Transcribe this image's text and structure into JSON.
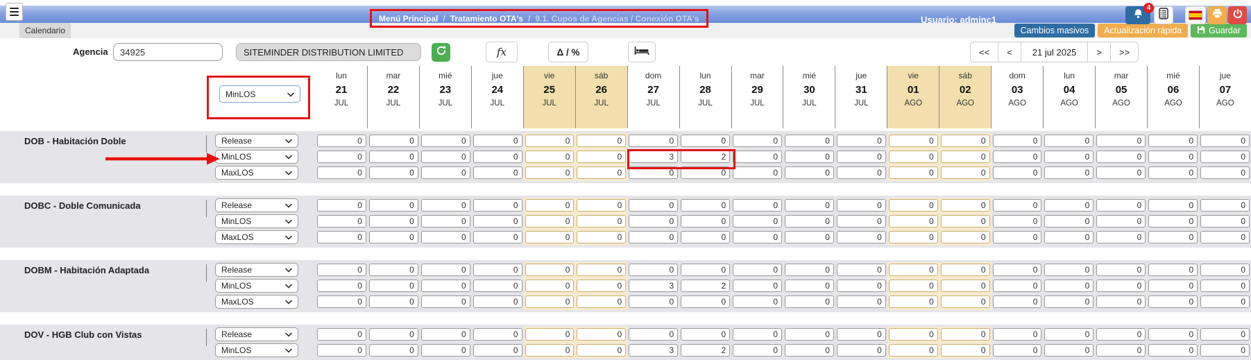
{
  "topbar": {
    "separator": "/",
    "breadcrumb": [
      {
        "label": "Menú Principal"
      },
      {
        "label": "Tratamiento OTA's"
      },
      {
        "label": "9.1. Cupos de Agencias / Conexión OTA's"
      }
    ],
    "user": "Usuario: adminc1",
    "notifications_badge": "4",
    "icons": [
      "hamburger-menu-icon",
      "bell-icon",
      "log-list-icon",
      "spain-flag-icon",
      "printer-icon",
      "power-icon"
    ]
  },
  "tabs": {
    "calendario": "Calendario"
  },
  "action_buttons": {
    "cambios_masivos": "Cambios masivos",
    "actualizacion_rapida": "Actualización rápida",
    "guardar": "Guardar"
  },
  "toolbar": {
    "agencia_label": "Agencia",
    "agencia_code": "34925",
    "agencia_name": "SITEMINDER DISTRIBUTION LIMITED",
    "fx_button": "fx",
    "delta_button": "Δ / %",
    "pagination": {
      "first": "<<",
      "prev": "<",
      "current_date": "21 jul 2025",
      "next": ">",
      "last": ">>"
    }
  },
  "filter": {
    "attribute_selected": "MinLOS"
  },
  "calendar_header": {
    "days": [
      {
        "dow": "lun",
        "date": "21",
        "month": "JUL",
        "weekend": false
      },
      {
        "dow": "mar",
        "date": "22",
        "month": "JUL",
        "weekend": false
      },
      {
        "dow": "mié",
        "date": "23",
        "month": "JUL",
        "weekend": false
      },
      {
        "dow": "jue",
        "date": "24",
        "month": "JUL",
        "weekend": false
      },
      {
        "dow": "vie",
        "date": "25",
        "month": "JUL",
        "weekend": true
      },
      {
        "dow": "sáb",
        "date": "26",
        "month": "JUL",
        "weekend": true
      },
      {
        "dow": "dom",
        "date": "27",
        "month": "JUL",
        "weekend": false
      },
      {
        "dow": "lun",
        "date": "28",
        "month": "JUL",
        "weekend": false
      },
      {
        "dow": "mar",
        "date": "29",
        "month": "JUL",
        "weekend": false
      },
      {
        "dow": "mié",
        "date": "30",
        "month": "JUL",
        "weekend": false
      },
      {
        "dow": "jue",
        "date": "31",
        "month": "JUL",
        "weekend": false
      },
      {
        "dow": "vie",
        "date": "01",
        "month": "AGO",
        "weekend": true
      },
      {
        "dow": "sáb",
        "date": "02",
        "month": "AGO",
        "weekend": true
      },
      {
        "dow": "dom",
        "date": "03",
        "month": "AGO",
        "weekend": false
      },
      {
        "dow": "lun",
        "date": "04",
        "month": "AGO",
        "weekend": false
      },
      {
        "dow": "mar",
        "date": "05",
        "month": "AGO",
        "weekend": false
      },
      {
        "dow": "mié",
        "date": "06",
        "month": "AGO",
        "weekend": false
      },
      {
        "dow": "jue",
        "date": "07",
        "month": "AGO",
        "weekend": false
      }
    ]
  },
  "groups": [
    {
      "name": "DOB - Habitación Doble",
      "rows": [
        {
          "type": "Release",
          "values": [
            0,
            0,
            0,
            0,
            0,
            0,
            0,
            0,
            0,
            0,
            0,
            0,
            0,
            0,
            0,
            0,
            0,
            0
          ]
        },
        {
          "type": "MinLOS",
          "values": [
            0,
            0,
            0,
            0,
            0,
            0,
            3,
            2,
            0,
            0,
            0,
            0,
            0,
            0,
            0,
            0,
            0,
            0
          ],
          "annotation_box": [
            6,
            7
          ]
        },
        {
          "type": "MaxLOS",
          "values": [
            0,
            0,
            0,
            0,
            0,
            0,
            0,
            0,
            0,
            0,
            0,
            0,
            0,
            0,
            0,
            0,
            0,
            0
          ]
        }
      ]
    },
    {
      "name": "DOBC - Doble Comunicada",
      "rows": [
        {
          "type": "Release",
          "values": [
            0,
            0,
            0,
            0,
            0,
            0,
            0,
            0,
            0,
            0,
            0,
            0,
            0,
            0,
            0,
            0,
            0,
            0
          ]
        },
        {
          "type": "MinLOS",
          "values": [
            0,
            0,
            0,
            0,
            0,
            0,
            0,
            0,
            0,
            0,
            0,
            0,
            0,
            0,
            0,
            0,
            0,
            0
          ]
        },
        {
          "type": "MaxLOS",
          "values": [
            0,
            0,
            0,
            0,
            0,
            0,
            0,
            0,
            0,
            0,
            0,
            0,
            0,
            0,
            0,
            0,
            0,
            0
          ]
        }
      ]
    },
    {
      "name": "DOBM - Habitación Adaptada",
      "rows": [
        {
          "type": "Release",
          "values": [
            0,
            0,
            0,
            0,
            0,
            0,
            0,
            0,
            0,
            0,
            0,
            0,
            0,
            0,
            0,
            0,
            0,
            0
          ]
        },
        {
          "type": "MinLOS",
          "values": [
            0,
            0,
            0,
            0,
            0,
            0,
            3,
            2,
            0,
            0,
            0,
            0,
            0,
            0,
            0,
            0,
            0,
            0
          ]
        },
        {
          "type": "MaxLOS",
          "values": [
            0,
            0,
            0,
            0,
            0,
            0,
            0,
            0,
            0,
            0,
            0,
            0,
            0,
            0,
            0,
            0,
            0,
            0
          ]
        }
      ]
    },
    {
      "name": "DOV - HGB Club con Vistas",
      "rows": [
        {
          "type": "Release",
          "values": [
            0,
            0,
            0,
            0,
            0,
            0,
            0,
            0,
            0,
            0,
            0,
            0,
            0,
            0,
            0,
            0,
            0,
            0
          ]
        },
        {
          "type": "MinLOS",
          "values": [
            0,
            0,
            0,
            0,
            0,
            0,
            3,
            2,
            0,
            0,
            0,
            0,
            0,
            0,
            0,
            0,
            0,
            0
          ]
        }
      ]
    }
  ],
  "colors": {
    "header_blue": "#6a8cd8",
    "accent_blue": "#2e6da4",
    "accent_orange": "#f0ad4e",
    "accent_green": "#5cb85c",
    "annotation_red": "#e51212",
    "weekend_tan": "#f3dfae"
  }
}
